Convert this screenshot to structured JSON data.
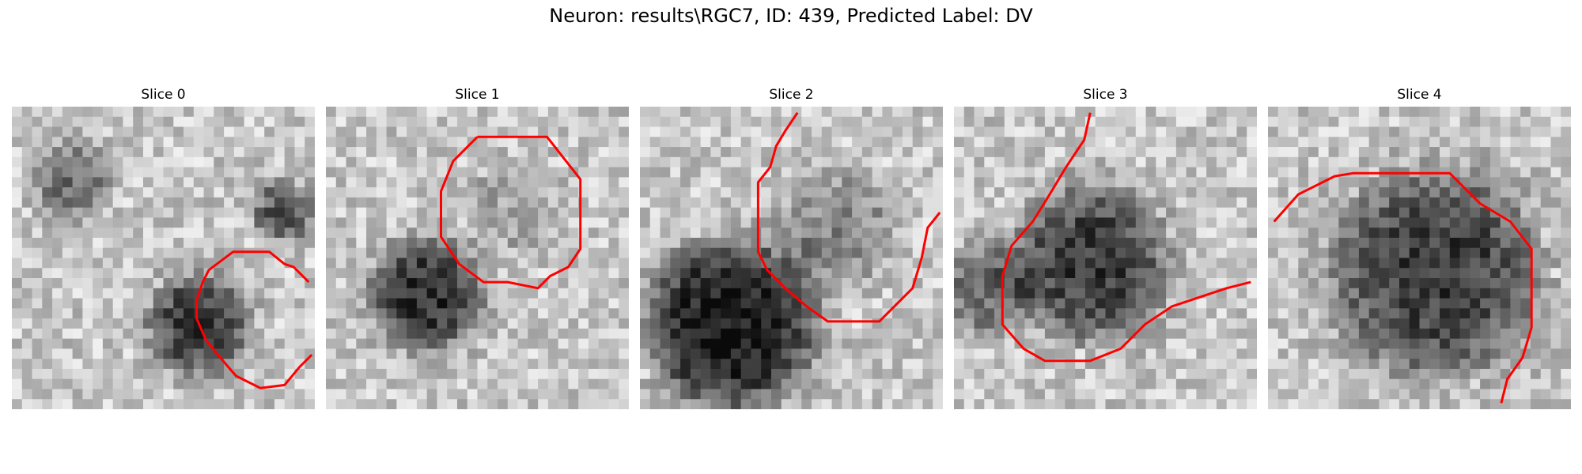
{
  "figure": {
    "title": "Neuron: results\\RGC7, ID: 439, Predicted Label: DV"
  },
  "panels": [
    {
      "title": "Slice 0"
    },
    {
      "title": "Slice 1"
    },
    {
      "title": "Slice 2"
    },
    {
      "title": "Slice 3"
    },
    {
      "title": "Slice 4"
    }
  ],
  "colors": {
    "contour": "#ff0000",
    "background": "#ffffff"
  }
}
